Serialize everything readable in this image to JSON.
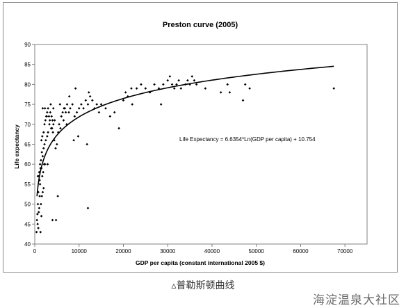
{
  "chart_data": {
    "type": "scatter",
    "title": "Preston curve (2005)",
    "xlabel": "GDP per capita (constant international 2005 $)",
    "ylabel": "Life expectancy",
    "xlim": [
      0,
      75000
    ],
    "ylim": [
      40,
      90
    ],
    "xticks": [
      0,
      10000,
      20000,
      30000,
      40000,
      50000,
      60000,
      70000
    ],
    "yticks": [
      40,
      45,
      50,
      55,
      60,
      65,
      70,
      75,
      80,
      85,
      90
    ],
    "grid": false,
    "annotation": "Life Expectancy = 6.6354*Ln(GDP per capita) + 10.754",
    "trendline": {
      "type": "logarithmic",
      "a": 6.6354,
      "b": 10.754,
      "x_range": [
        500,
        67500
      ]
    },
    "points": [
      [
        400,
        43
      ],
      [
        500,
        46
      ],
      [
        600,
        47.5
      ],
      [
        700,
        50
      ],
      [
        650,
        45
      ],
      [
        800,
        44
      ],
      [
        900,
        48
      ],
      [
        1000,
        49
      ],
      [
        1100,
        52
      ],
      [
        1200,
        55
      ],
      [
        800,
        53
      ],
      [
        700,
        57
      ],
      [
        900,
        57
      ],
      [
        1300,
        43
      ],
      [
        1100,
        56
      ],
      [
        1500,
        47
      ],
      [
        1400,
        50
      ],
      [
        1600,
        52
      ],
      [
        1800,
        53
      ],
      [
        2000,
        54
      ],
      [
        1000,
        58
      ],
      [
        1200,
        60
      ],
      [
        1400,
        61
      ],
      [
        1600,
        63
      ],
      [
        1800,
        62
      ],
      [
        2000,
        64
      ],
      [
        2200,
        65
      ],
      [
        2500,
        66
      ],
      [
        2800,
        67
      ],
      [
        3000,
        68
      ],
      [
        1500,
        59
      ],
      [
        1700,
        57
      ],
      [
        1900,
        58
      ],
      [
        2100,
        60
      ],
      [
        2300,
        60
      ],
      [
        1300,
        59
      ],
      [
        1500,
        66
      ],
      [
        1700,
        67
      ],
      [
        2000,
        68
      ],
      [
        2200,
        70
      ],
      [
        2400,
        71
      ],
      [
        2600,
        72
      ],
      [
        2800,
        73
      ],
      [
        3000,
        74
      ],
      [
        3200,
        72
      ],
      [
        3500,
        73
      ],
      [
        3800,
        72
      ],
      [
        4000,
        71
      ],
      [
        4200,
        70
      ],
      [
        4500,
        71
      ],
      [
        1800,
        74
      ],
      [
        2300,
        74
      ],
      [
        2700,
        72
      ],
      [
        3300,
        70
      ],
      [
        3700,
        69
      ],
      [
        4100,
        68
      ],
      [
        4400,
        66
      ],
      [
        4700,
        64
      ],
      [
        5000,
        65
      ],
      [
        5300,
        68
      ],
      [
        5500,
        70
      ],
      [
        5800,
        69
      ],
      [
        6000,
        72
      ],
      [
        6300,
        73
      ],
      [
        6600,
        74
      ],
      [
        7000,
        73
      ],
      [
        7300,
        75
      ],
      [
        7700,
        73
      ],
      [
        8000,
        74
      ],
      [
        8500,
        75
      ],
      [
        9000,
        72
      ],
      [
        9500,
        73
      ],
      [
        10000,
        74
      ],
      [
        10500,
        75
      ],
      [
        11000,
        74
      ],
      [
        11500,
        76
      ],
      [
        12000,
        75
      ],
      [
        12500,
        77
      ],
      [
        13000,
        76
      ],
      [
        13500,
        74
      ],
      [
        14000,
        75
      ],
      [
        14500,
        73
      ],
      [
        15000,
        75
      ],
      [
        16000,
        74
      ],
      [
        17000,
        72
      ],
      [
        18000,
        73
      ],
      [
        19000,
        69
      ],
      [
        20000,
        76
      ],
      [
        21000,
        77
      ],
      [
        22000,
        75
      ],
      [
        4000,
        46
      ],
      [
        4800,
        46
      ],
      [
        5200,
        52
      ],
      [
        12000,
        49
      ],
      [
        8800,
        66
      ],
      [
        9800,
        67
      ],
      [
        11800,
        65
      ],
      [
        7800,
        77
      ],
      [
        6500,
        71
      ],
      [
        7200,
        70
      ],
      [
        4200,
        74
      ],
      [
        3600,
        75
      ],
      [
        3900,
        69
      ],
      [
        5700,
        75
      ],
      [
        6800,
        74
      ],
      [
        9200,
        79
      ],
      [
        12200,
        78
      ],
      [
        20500,
        78
      ],
      [
        21800,
        79
      ],
      [
        23000,
        79
      ],
      [
        24000,
        80
      ],
      [
        25000,
        79
      ],
      [
        26000,
        78
      ],
      [
        27000,
        80
      ],
      [
        28000,
        79
      ],
      [
        28500,
        75
      ],
      [
        29000,
        80
      ],
      [
        30000,
        81
      ],
      [
        30500,
        82
      ],
      [
        31000,
        80
      ],
      [
        31500,
        79
      ],
      [
        32000,
        80
      ],
      [
        32500,
        81
      ],
      [
        33000,
        79
      ],
      [
        34000,
        80
      ],
      [
        34500,
        81
      ],
      [
        35000,
        80
      ],
      [
        35500,
        82
      ],
      [
        36000,
        81
      ],
      [
        36500,
        80
      ],
      [
        38500,
        79
      ],
      [
        42000,
        78
      ],
      [
        43500,
        80
      ],
      [
        44000,
        78
      ],
      [
        47000,
        76
      ],
      [
        47500,
        80
      ],
      [
        48500,
        79
      ],
      [
        67500,
        79
      ],
      [
        3400,
        71
      ],
      [
        2900,
        60
      ]
    ]
  },
  "caption": "▵普勒斯顿曲线",
  "watermark": "海淀温泉大社区"
}
